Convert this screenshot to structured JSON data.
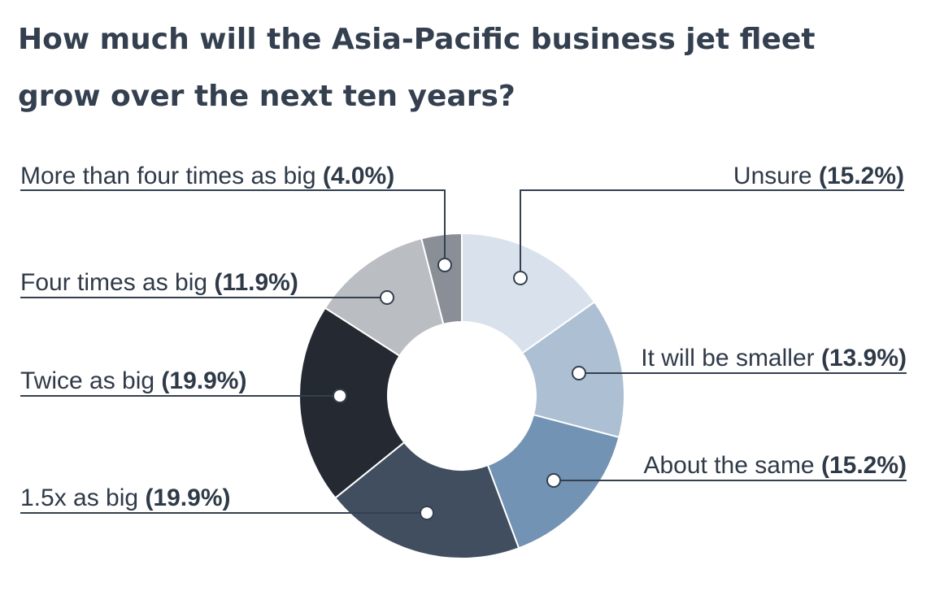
{
  "title_lines": [
    "How much will the Asia-Pacific business jet fleet",
    "grow over the next ten years?"
  ],
  "chart_data": {
    "type": "pie",
    "donut": true,
    "title": "How much will the Asia-Pacific business jet fleet grow over the next ten years?",
    "slices": [
      {
        "label": "Unsure",
        "value": 15.2,
        "value_label": "(15.2%)",
        "color": "#d9e2ec"
      },
      {
        "label": "It will be smaller",
        "value": 13.9,
        "value_label": "(13.9%)",
        "color": "#adbfd2"
      },
      {
        "label": "About the same",
        "value": 15.2,
        "value_label": "(15.2%)",
        "color": "#7293b3"
      },
      {
        "label": "1.5x as big",
        "value": 19.9,
        "value_label": "(19.9%)",
        "color": "#414e60"
      },
      {
        "label": "Twice as big",
        "value": 19.9,
        "value_label": "(19.9%)",
        "color": "#252932"
      },
      {
        "label": "Four times as big",
        "value": 11.9,
        "value_label": "(11.9%)",
        "color": "#babdc2"
      },
      {
        "label": "More than four times as big",
        "value": 4.0,
        "value_label": "(4.0%)",
        "color": "#8a8e96"
      }
    ]
  },
  "colors": {
    "title": "#34404f",
    "label_text": "#2f3a48",
    "leader_line": "#34404f",
    "marker_fill": "#ffffff"
  }
}
